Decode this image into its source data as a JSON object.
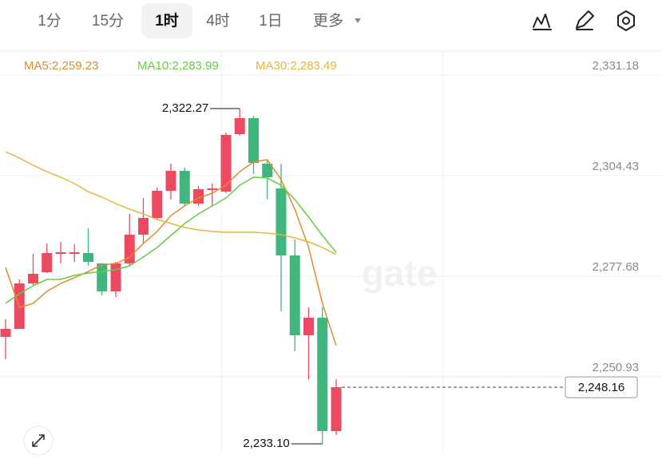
{
  "toolbar": {
    "tabs": [
      "1分",
      "15分",
      "1时",
      "4时",
      "1日"
    ],
    "selected": 2,
    "more": "更多"
  },
  "chart_data": {
    "type": "candlestick",
    "open": [
      2261.55,
      2263.67,
      2275.77,
      2278.74,
      2283.62,
      2283.62,
      2283.84,
      2281.08,
      2273.65,
      2281.08,
      2288.72,
      2293.18,
      2300.4,
      2305.7,
      2297.0,
      2300.61,
      2300.18,
      2315.47,
      2319.72,
      2307.61,
      2301.03,
      2283.2,
      2261.97,
      2266.64,
      2236.49
    ],
    "high": [
      2266.22,
      2276.83,
      2283.62,
      2286.38,
      2286.81,
      2286.17,
      2290.42,
      2281.08,
      2281.5,
      2294.24,
      2298.49,
      2301.25,
      2307.61,
      2306.55,
      2301.67,
      2302.31,
      2315.89,
      2322.27,
      2320.35,
      2308.68,
      2307.61,
      2287.45,
      2269.4,
      2269.4,
      2250.29
    ],
    "low": [
      2255.6,
      2263.67,
      2275.34,
      2278.53,
      2281.08,
      2281.5,
      2280.44,
      2272.58,
      2272.16,
      2280.65,
      2286.38,
      2292.75,
      2298.06,
      2296.36,
      2296.36,
      2296.36,
      2299.76,
      2315.04,
      2304.85,
      2298.06,
      2268.34,
      2257.72,
      2250.29,
      2233.1,
      2235.43
    ],
    "close": [
      2263.67,
      2275.77,
      2278.32,
      2283.84,
      2284.05,
      2284.05,
      2281.5,
      2273.65,
      2281.08,
      2288.72,
      2293.18,
      2300.4,
      2305.7,
      2297.0,
      2300.82,
      2301.03,
      2315.26,
      2319.72,
      2307.83,
      2304.01,
      2283.2,
      2261.97,
      2266.64,
      2236.49,
      2248.16
    ],
    "up_color": "#eb4a60",
    "down_color": "#3fb67c",
    "series": [
      {
        "name": "MA5:2,259.23",
        "color": "#e38b2c",
        "values": [
          2280.02,
          2269.4,
          2270.46,
          2273.65,
          2275.77,
          2277.26,
          2278.95,
          2280.65,
          2281.08,
          2282.78,
          2286.38,
          2289.57,
          2293.81,
          2296.36,
          2298.49,
          2299.76,
          2301.88,
          2305.49,
          2308.04,
          2308.68,
          2303.37,
          2295.51,
          2285.32,
          2270.46,
          2259.23
        ]
      },
      {
        "name": "MA10:2,283.99",
        "color": "#66cc44",
        "values": [
          2270.46,
          2273.01,
          2275.13,
          2276.83,
          2276.83,
          2277.89,
          2278.53,
          2278.95,
          2279.38,
          2280.44,
          2282.78,
          2285.32,
          2288.51,
          2291.69,
          2294.24,
          2296.36,
          2298.49,
          2301.88,
          2304.01,
          2303.79,
          2301.88,
          2298.06,
          2293.39,
          2288.51,
          2283.99
        ]
      },
      {
        "name": "MA30:2,283.49",
        "color": "#e9b53e",
        "values": [
          2310.8,
          2309.1,
          2307.19,
          2305.49,
          2304.01,
          2302.31,
          2300.18,
          2298.7,
          2297.0,
          2295.51,
          2294.24,
          2292.75,
          2291.69,
          2290.63,
          2289.99,
          2289.57,
          2289.36,
          2289.36,
          2289.36,
          2289.14,
          2288.72,
          2287.87,
          2286.81,
          2285.32,
          2283.49
        ]
      }
    ],
    "ylim": [
      2230.13,
      2337.55
    ],
    "yticks": [
      {
        "value": 2331.18,
        "label": "2,331.18"
      },
      {
        "value": 2304.43,
        "label": "2,304.43"
      },
      {
        "value": 2277.68,
        "label": "2,277.68"
      },
      {
        "value": 2250.93,
        "label": "2,250.93"
      }
    ],
    "grid": true,
    "high_label": "2,322.27",
    "low_label": "2,233.10",
    "last_label": "2,248.16"
  }
}
